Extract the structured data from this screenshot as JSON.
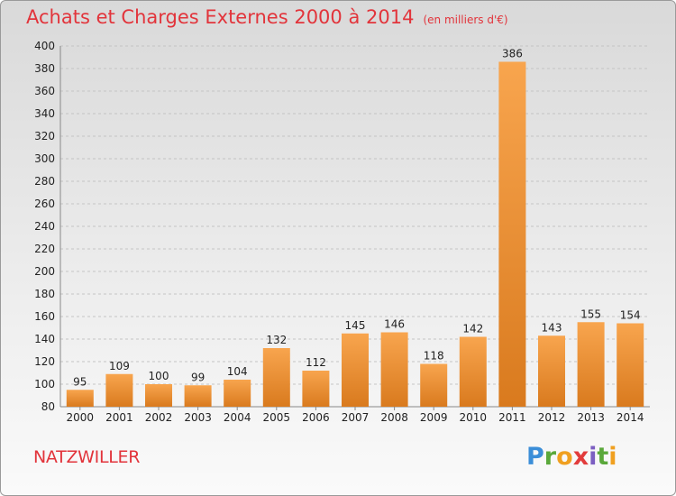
{
  "header": {
    "title": "Achats et Charges Externes 2000 à 2014",
    "subtitle": "(en milliers d'€)"
  },
  "footer": {
    "commune": "NATZWILLER",
    "logo": "Proxiti"
  },
  "colors": {
    "title": "#e2343b",
    "bar_light": "#f8a54e",
    "bar_dark": "#d97a1e"
  },
  "chart_data": {
    "type": "bar",
    "title": "Achats et Charges Externes 2000 à 2014",
    "subtitle": "(en milliers d'€)",
    "categories": [
      "2000",
      "2001",
      "2002",
      "2003",
      "2004",
      "2005",
      "2006",
      "2007",
      "2008",
      "2009",
      "2010",
      "2011",
      "2012",
      "2013",
      "2014"
    ],
    "values": [
      95,
      109,
      100,
      99,
      104,
      132,
      112,
      145,
      146,
      118,
      142,
      386,
      143,
      155,
      154
    ],
    "ylim": [
      80,
      400
    ],
    "yticks": [
      80,
      100,
      120,
      140,
      160,
      180,
      200,
      220,
      240,
      260,
      280,
      300,
      320,
      340,
      360,
      380,
      400
    ],
    "grid": true,
    "xlabel": "",
    "ylabel": ""
  }
}
